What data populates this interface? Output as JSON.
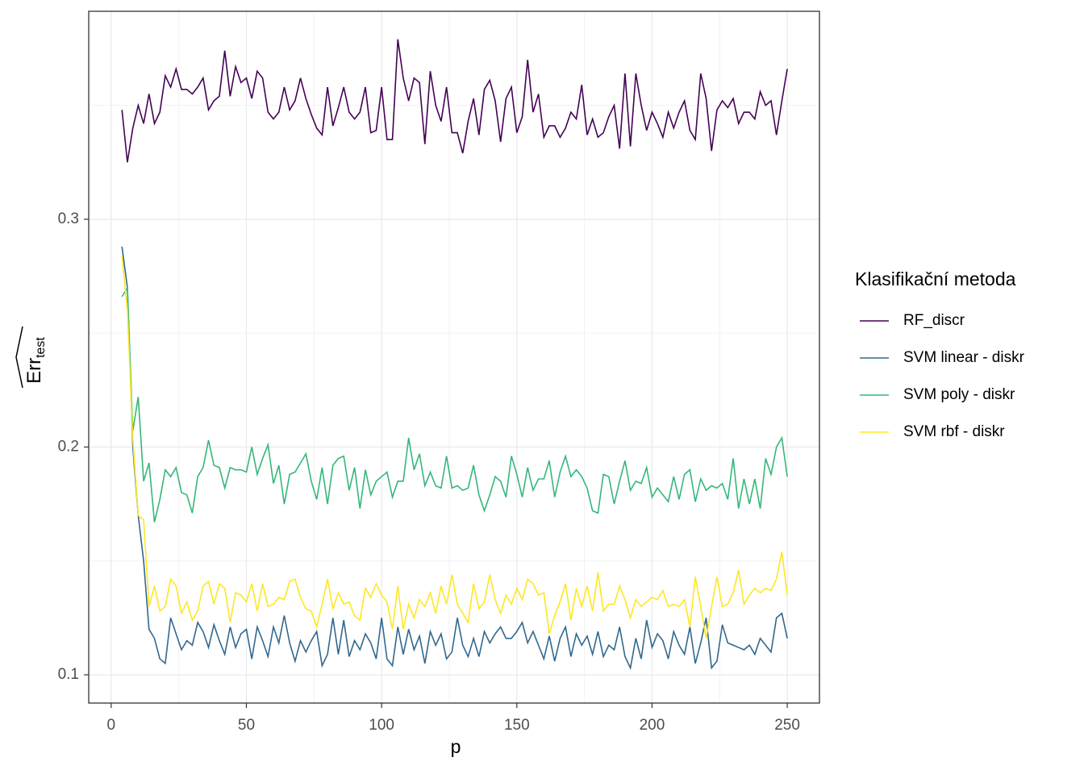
{
  "chart_data": {
    "type": "line",
    "x_label": "p",
    "y_label": "Err",
    "y_label_sub": "test",
    "legend_title": "Klasifikační metoda",
    "legend": "right",
    "grid": true,
    "xlim": [
      -8.3,
      261.9
    ],
    "ylim": [
      0.0876,
      0.3913
    ],
    "xticks": [
      0,
      50,
      100,
      150,
      200,
      250
    ],
    "yticks": [
      0.1,
      0.2,
      0.3
    ],
    "x": [
      4,
      6,
      8,
      10,
      12,
      14,
      16,
      18,
      20,
      22,
      24,
      26,
      28,
      30,
      32,
      34,
      36,
      38,
      40,
      42,
      44,
      46,
      48,
      50,
      52,
      54,
      56,
      58,
      60,
      62,
      64,
      66,
      68,
      70,
      72,
      74,
      76,
      78,
      80,
      82,
      84,
      86,
      88,
      90,
      92,
      94,
      96,
      98,
      100,
      102,
      104,
      106,
      108,
      110,
      112,
      114,
      116,
      118,
      120,
      122,
      124,
      126,
      128,
      130,
      132,
      134,
      136,
      138,
      140,
      142,
      144,
      146,
      148,
      150,
      152,
      154,
      156,
      158,
      160,
      162,
      164,
      166,
      168,
      170,
      172,
      174,
      176,
      178,
      180,
      182,
      184,
      186,
      188,
      190,
      192,
      194,
      196,
      198,
      200,
      202,
      204,
      206,
      208,
      210,
      212,
      214,
      216,
      218,
      220,
      222,
      224,
      226,
      228,
      230,
      232,
      234,
      236,
      238,
      240,
      242,
      244,
      246,
      248,
      250
    ],
    "series": [
      {
        "name": "RF_discr",
        "color": "#440154",
        "values": [
          0.348,
          0.325,
          0.34,
          0.35,
          0.342,
          0.355,
          0.342,
          0.347,
          0.363,
          0.358,
          0.366,
          0.357,
          0.357,
          0.355,
          0.358,
          0.362,
          0.348,
          0.352,
          0.354,
          0.374,
          0.354,
          0.367,
          0.36,
          0.362,
          0.353,
          0.365,
          0.362,
          0.347,
          0.344,
          0.347,
          0.358,
          0.348,
          0.352,
          0.362,
          0.353,
          0.346,
          0.34,
          0.337,
          0.358,
          0.341,
          0.349,
          0.358,
          0.347,
          0.344,
          0.347,
          0.358,
          0.338,
          0.339,
          0.358,
          0.335,
          0.335,
          0.379,
          0.362,
          0.352,
          0.362,
          0.36,
          0.333,
          0.365,
          0.35,
          0.343,
          0.358,
          0.338,
          0.338,
          0.329,
          0.343,
          0.353,
          0.337,
          0.357,
          0.361,
          0.352,
          0.334,
          0.353,
          0.358,
          0.338,
          0.345,
          0.37,
          0.347,
          0.355,
          0.336,
          0.341,
          0.341,
          0.336,
          0.34,
          0.347,
          0.344,
          0.359,
          0.337,
          0.344,
          0.336,
          0.338,
          0.345,
          0.35,
          0.331,
          0.364,
          0.332,
          0.364,
          0.35,
          0.339,
          0.347,
          0.342,
          0.336,
          0.347,
          0.34,
          0.347,
          0.352,
          0.339,
          0.335,
          0.364,
          0.353,
          0.33,
          0.348,
          0.352,
          0.349,
          0.353,
          0.342,
          0.347,
          0.347,
          0.344,
          0.356,
          0.35,
          0.352,
          0.337,
          0.352,
          0.366
        ]
      },
      {
        "name": "SVM linear - diskr",
        "color": "#31688e",
        "values": [
          0.288,
          0.27,
          0.2,
          0.17,
          0.15,
          0.12,
          0.116,
          0.107,
          0.105,
          0.125,
          0.118,
          0.111,
          0.115,
          0.113,
          0.123,
          0.119,
          0.112,
          0.122,
          0.115,
          0.109,
          0.121,
          0.112,
          0.118,
          0.12,
          0.107,
          0.121,
          0.115,
          0.108,
          0.121,
          0.114,
          0.126,
          0.114,
          0.106,
          0.115,
          0.11,
          0.115,
          0.119,
          0.104,
          0.109,
          0.125,
          0.109,
          0.124,
          0.108,
          0.115,
          0.111,
          0.118,
          0.114,
          0.107,
          0.125,
          0.107,
          0.104,
          0.121,
          0.109,
          0.12,
          0.111,
          0.117,
          0.105,
          0.119,
          0.113,
          0.118,
          0.107,
          0.11,
          0.125,
          0.113,
          0.108,
          0.116,
          0.108,
          0.119,
          0.114,
          0.118,
          0.121,
          0.116,
          0.116,
          0.119,
          0.123,
          0.114,
          0.119,
          0.113,
          0.107,
          0.117,
          0.106,
          0.116,
          0.121,
          0.108,
          0.118,
          0.113,
          0.117,
          0.109,
          0.119,
          0.108,
          0.113,
          0.111,
          0.121,
          0.108,
          0.103,
          0.116,
          0.107,
          0.124,
          0.112,
          0.118,
          0.115,
          0.107,
          0.119,
          0.113,
          0.109,
          0.121,
          0.105,
          0.114,
          0.125,
          0.103,
          0.106,
          0.122,
          0.114,
          0.113,
          0.112,
          0.111,
          0.113,
          0.109,
          0.116,
          0.113,
          0.11,
          0.125,
          0.127,
          0.116
        ]
      },
      {
        "name": "SVM poly - diskr",
        "color": "#35b779",
        "values": [
          0.266,
          0.27,
          0.207,
          0.222,
          0.185,
          0.193,
          0.167,
          0.177,
          0.19,
          0.187,
          0.191,
          0.18,
          0.179,
          0.171,
          0.187,
          0.191,
          0.203,
          0.192,
          0.191,
          0.182,
          0.191,
          0.19,
          0.19,
          0.189,
          0.2,
          0.188,
          0.195,
          0.201,
          0.184,
          0.192,
          0.175,
          0.188,
          0.189,
          0.193,
          0.197,
          0.185,
          0.177,
          0.191,
          0.175,
          0.192,
          0.195,
          0.196,
          0.181,
          0.191,
          0.173,
          0.19,
          0.179,
          0.185,
          0.187,
          0.189,
          0.178,
          0.185,
          0.185,
          0.204,
          0.19,
          0.197,
          0.183,
          0.189,
          0.183,
          0.182,
          0.196,
          0.182,
          0.183,
          0.181,
          0.182,
          0.192,
          0.179,
          0.172,
          0.179,
          0.187,
          0.185,
          0.178,
          0.196,
          0.188,
          0.178,
          0.191,
          0.181,
          0.186,
          0.186,
          0.194,
          0.178,
          0.189,
          0.196,
          0.187,
          0.19,
          0.187,
          0.182,
          0.172,
          0.171,
          0.188,
          0.187,
          0.175,
          0.185,
          0.194,
          0.181,
          0.185,
          0.184,
          0.191,
          0.178,
          0.182,
          0.179,
          0.176,
          0.187,
          0.177,
          0.188,
          0.19,
          0.176,
          0.186,
          0.181,
          0.183,
          0.182,
          0.184,
          0.177,
          0.195,
          0.173,
          0.186,
          0.175,
          0.186,
          0.173,
          0.195,
          0.188,
          0.2,
          0.204,
          0.187
        ]
      },
      {
        "name": "SVM rbf - diskr",
        "color": "#fde725",
        "values": [
          0.284,
          0.26,
          0.204,
          0.17,
          0.168,
          0.13,
          0.139,
          0.128,
          0.13,
          0.142,
          0.139,
          0.127,
          0.132,
          0.124,
          0.128,
          0.139,
          0.141,
          0.131,
          0.14,
          0.138,
          0.123,
          0.136,
          0.135,
          0.132,
          0.14,
          0.128,
          0.14,
          0.13,
          0.131,
          0.134,
          0.133,
          0.141,
          0.142,
          0.134,
          0.129,
          0.128,
          0.121,
          0.131,
          0.142,
          0.129,
          0.136,
          0.131,
          0.132,
          0.126,
          0.124,
          0.138,
          0.134,
          0.14,
          0.135,
          0.132,
          0.12,
          0.139,
          0.12,
          0.131,
          0.125,
          0.133,
          0.13,
          0.136,
          0.127,
          0.139,
          0.131,
          0.144,
          0.131,
          0.127,
          0.123,
          0.14,
          0.129,
          0.132,
          0.144,
          0.133,
          0.127,
          0.135,
          0.131,
          0.138,
          0.133,
          0.142,
          0.14,
          0.135,
          0.136,
          0.118,
          0.126,
          0.132,
          0.14,
          0.124,
          0.138,
          0.13,
          0.139,
          0.128,
          0.145,
          0.128,
          0.131,
          0.131,
          0.139,
          0.133,
          0.125,
          0.133,
          0.13,
          0.132,
          0.134,
          0.133,
          0.137,
          0.13,
          0.131,
          0.13,
          0.133,
          0.121,
          0.143,
          0.13,
          0.116,
          0.13,
          0.143,
          0.13,
          0.131,
          0.136,
          0.146,
          0.131,
          0.135,
          0.138,
          0.136,
          0.138,
          0.137,
          0.142,
          0.154,
          0.135
        ]
      }
    ]
  }
}
